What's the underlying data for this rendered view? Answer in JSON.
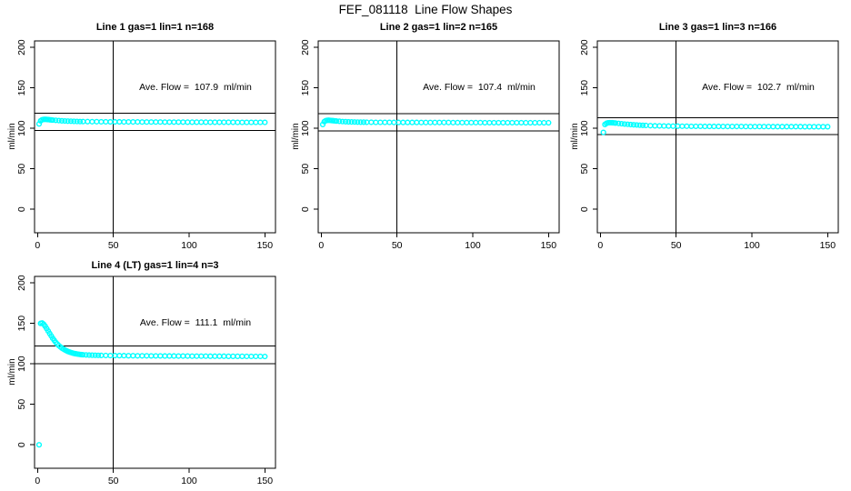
{
  "chart_data": {
    "type": "scatter",
    "suptitle": "FEF_081118  Line Flow Shapes",
    "xlabel": "",
    "ylabel": "ml/min",
    "x_ticks": [
      0,
      50,
      100,
      150
    ],
    "y_ticks": [
      0,
      50,
      100,
      150,
      200
    ],
    "xlim": [
      -2,
      157
    ],
    "ylim": [
      -29,
      208
    ],
    "grid": false,
    "legend": "none",
    "point_color": "#00FFFF",
    "axis_color": "#000000",
    "vline_x": 50,
    "annotation_pos": {
      "x": 103,
      "y": 150
    },
    "subplots": [
      {
        "title": "Line 1 gas=1 lin=1 n=168",
        "annotation": "Ave. Flow =  107.9  ml/min",
        "ave_flow": 107.9,
        "n": 168,
        "hlines": [
          118.7,
          97.1
        ],
        "points": [
          [
            1,
            105.5
          ],
          [
            2,
            109.3
          ],
          [
            3,
            110.6
          ],
          [
            4,
            111.0
          ],
          [
            5,
            111.1
          ],
          [
            6,
            111.0
          ],
          [
            7,
            110.8
          ],
          [
            8,
            110.6
          ],
          [
            9,
            110.4
          ],
          [
            10,
            110.2
          ],
          [
            12,
            109.9
          ],
          [
            14,
            109.6
          ],
          [
            16,
            109.3
          ],
          [
            18,
            109.1
          ],
          [
            20,
            108.9
          ],
          [
            22,
            108.8
          ],
          [
            24,
            108.6
          ],
          [
            26,
            108.5
          ],
          [
            28,
            108.4
          ],
          [
            30,
            108.4
          ],
          [
            33,
            108.3
          ],
          [
            36,
            108.2
          ],
          [
            39,
            108.2
          ],
          [
            42,
            108.1
          ],
          [
            45,
            108.1
          ],
          [
            48,
            108.0
          ],
          [
            51,
            108.0
          ],
          [
            54,
            108.0
          ],
          [
            57,
            107.9
          ],
          [
            60,
            107.9
          ],
          [
            63,
            107.9
          ],
          [
            66,
            107.9
          ],
          [
            69,
            107.8
          ],
          [
            72,
            107.8
          ],
          [
            75,
            107.8
          ],
          [
            78,
            107.8
          ],
          [
            81,
            107.8
          ],
          [
            84,
            107.7
          ],
          [
            87,
            107.7
          ],
          [
            90,
            107.7
          ],
          [
            93,
            107.7
          ],
          [
            96,
            107.7
          ],
          [
            99,
            107.6
          ],
          [
            102,
            107.6
          ],
          [
            105,
            107.6
          ],
          [
            108,
            107.6
          ],
          [
            111,
            107.6
          ],
          [
            114,
            107.5
          ],
          [
            117,
            107.5
          ],
          [
            120,
            107.5
          ],
          [
            123,
            107.5
          ],
          [
            126,
            107.5
          ],
          [
            129,
            107.5
          ],
          [
            132,
            107.4
          ],
          [
            135,
            107.4
          ],
          [
            138,
            107.4
          ],
          [
            141,
            107.4
          ],
          [
            144,
            107.4
          ],
          [
            147,
            107.4
          ],
          [
            150,
            107.4
          ]
        ]
      },
      {
        "title": "Line 2 gas=1 lin=2 n=165",
        "annotation": "Ave. Flow =  107.4  ml/min",
        "ave_flow": 107.4,
        "n": 165,
        "hlines": [
          118.1,
          96.7
        ],
        "points": [
          [
            1,
            104.8
          ],
          [
            2,
            108.3
          ],
          [
            3,
            109.5
          ],
          [
            4,
            109.9
          ],
          [
            5,
            110.0
          ],
          [
            6,
            109.8
          ],
          [
            7,
            109.6
          ],
          [
            8,
            109.4
          ],
          [
            9,
            109.2
          ],
          [
            10,
            109.0
          ],
          [
            12,
            108.7
          ],
          [
            14,
            108.4
          ],
          [
            16,
            108.2
          ],
          [
            18,
            108.0
          ],
          [
            20,
            107.9
          ],
          [
            22,
            107.8
          ],
          [
            24,
            107.7
          ],
          [
            26,
            107.6
          ],
          [
            28,
            107.6
          ],
          [
            30,
            107.5
          ],
          [
            33,
            107.5
          ],
          [
            36,
            107.4
          ],
          [
            39,
            107.4
          ],
          [
            42,
            107.4
          ],
          [
            45,
            107.4
          ],
          [
            48,
            107.3
          ],
          [
            51,
            107.3
          ],
          [
            54,
            107.3
          ],
          [
            57,
            107.3
          ],
          [
            60,
            107.3
          ],
          [
            63,
            107.3
          ],
          [
            66,
            107.2
          ],
          [
            69,
            107.2
          ],
          [
            72,
            107.2
          ],
          [
            75,
            107.2
          ],
          [
            78,
            107.2
          ],
          [
            81,
            107.2
          ],
          [
            84,
            107.2
          ],
          [
            87,
            107.1
          ],
          [
            90,
            107.1
          ],
          [
            93,
            107.1
          ],
          [
            96,
            107.1
          ],
          [
            99,
            107.1
          ],
          [
            102,
            107.1
          ],
          [
            105,
            107.1
          ],
          [
            108,
            107.0
          ],
          [
            111,
            107.0
          ],
          [
            114,
            107.0
          ],
          [
            117,
            107.0
          ],
          [
            120,
            107.0
          ],
          [
            123,
            107.0
          ],
          [
            126,
            107.0
          ],
          [
            129,
            107.0
          ],
          [
            132,
            107.0
          ],
          [
            135,
            106.9
          ],
          [
            138,
            106.9
          ],
          [
            141,
            106.9
          ],
          [
            144,
            106.9
          ],
          [
            147,
            106.9
          ],
          [
            150,
            106.9
          ]
        ]
      },
      {
        "title": "Line 3 gas=1 lin=3 n=166",
        "annotation": "Ave. Flow =  102.7  ml/min",
        "ave_flow": 102.7,
        "n": 166,
        "hlines": [
          113.0,
          92.4
        ],
        "points": [
          [
            2,
            95.0
          ],
          [
            3,
            104.8
          ],
          [
            4,
            106.2
          ],
          [
            5,
            106.8
          ],
          [
            6,
            107.0
          ],
          [
            7,
            107.0
          ],
          [
            8,
            106.9
          ],
          [
            9,
            106.7
          ],
          [
            10,
            106.5
          ],
          [
            12,
            106.1
          ],
          [
            14,
            105.7
          ],
          [
            16,
            105.3
          ],
          [
            18,
            105.0
          ],
          [
            20,
            104.7
          ],
          [
            22,
            104.4
          ],
          [
            24,
            104.2
          ],
          [
            26,
            103.9
          ],
          [
            28,
            103.7
          ],
          [
            30,
            103.6
          ],
          [
            33,
            103.3
          ],
          [
            36,
            103.1
          ],
          [
            39,
            103.0
          ],
          [
            42,
            102.9
          ],
          [
            45,
            102.8
          ],
          [
            48,
            102.7
          ],
          [
            51,
            102.7
          ],
          [
            54,
            102.6
          ],
          [
            57,
            102.6
          ],
          [
            60,
            102.5
          ],
          [
            63,
            102.5
          ],
          [
            66,
            102.5
          ],
          [
            69,
            102.4
          ],
          [
            72,
            102.4
          ],
          [
            75,
            102.4
          ],
          [
            78,
            102.4
          ],
          [
            81,
            102.3
          ],
          [
            84,
            102.3
          ],
          [
            87,
            102.3
          ],
          [
            90,
            102.3
          ],
          [
            93,
            102.3
          ],
          [
            96,
            102.2
          ],
          [
            99,
            102.2
          ],
          [
            102,
            102.2
          ],
          [
            105,
            102.2
          ],
          [
            108,
            102.2
          ],
          [
            111,
            102.2
          ],
          [
            114,
            102.1
          ],
          [
            117,
            102.1
          ],
          [
            120,
            102.1
          ],
          [
            123,
            102.1
          ],
          [
            126,
            102.1
          ],
          [
            129,
            102.1
          ],
          [
            132,
            102.1
          ],
          [
            135,
            102.0
          ],
          [
            138,
            102.0
          ],
          [
            141,
            102.0
          ],
          [
            144,
            102.0
          ],
          [
            147,
            102.0
          ],
          [
            150,
            102.0
          ]
        ]
      },
      {
        "title": "Line 4 (LT) gas=1 lin=4 n=3",
        "annotation": "Ave. Flow =  111.1  ml/min",
        "ave_flow": 111.1,
        "n": 3,
        "hlines": [
          122.2,
          100.0
        ],
        "points": [
          [
            1,
            0
          ],
          [
            2,
            150.0
          ],
          [
            3,
            150.5
          ],
          [
            4,
            149.0
          ],
          [
            5,
            146.5
          ],
          [
            6,
            143.5
          ],
          [
            7,
            140.5
          ],
          [
            8,
            137.5
          ],
          [
            9,
            134.5
          ],
          [
            10,
            131.5
          ],
          [
            11,
            129.0
          ],
          [
            12,
            126.5
          ],
          [
            13,
            124.5
          ],
          [
            14,
            122.5
          ],
          [
            15,
            121.0
          ],
          [
            16,
            119.5
          ],
          [
            17,
            118.3
          ],
          [
            18,
            117.2
          ],
          [
            19,
            116.2
          ],
          [
            20,
            115.3
          ],
          [
            21,
            114.6
          ],
          [
            22,
            114.0
          ],
          [
            23,
            113.4
          ],
          [
            24,
            112.9
          ],
          [
            25,
            112.5
          ],
          [
            26,
            112.2
          ],
          [
            27,
            111.9
          ],
          [
            28,
            111.6
          ],
          [
            29,
            111.4
          ],
          [
            30,
            111.2
          ],
          [
            32,
            111.0
          ],
          [
            34,
            110.8
          ],
          [
            36,
            110.7
          ],
          [
            38,
            110.6
          ],
          [
            40,
            110.5
          ],
          [
            42,
            110.4
          ],
          [
            45,
            110.3
          ],
          [
            48,
            110.2
          ],
          [
            51,
            110.2
          ],
          [
            54,
            110.1
          ],
          [
            57,
            110.1
          ],
          [
            60,
            110.0
          ],
          [
            63,
            110.0
          ],
          [
            66,
            109.9
          ],
          [
            69,
            109.9
          ],
          [
            72,
            109.9
          ],
          [
            75,
            109.8
          ],
          [
            78,
            109.8
          ],
          [
            81,
            109.8
          ],
          [
            84,
            109.7
          ],
          [
            87,
            109.7
          ],
          [
            90,
            109.7
          ],
          [
            93,
            109.6
          ],
          [
            96,
            109.6
          ],
          [
            99,
            109.6
          ],
          [
            102,
            109.5
          ],
          [
            105,
            109.5
          ],
          [
            108,
            109.5
          ],
          [
            111,
            109.5
          ],
          [
            114,
            109.4
          ],
          [
            117,
            109.4
          ],
          [
            120,
            109.4
          ],
          [
            123,
            109.4
          ],
          [
            126,
            109.3
          ],
          [
            129,
            109.3
          ],
          [
            132,
            109.3
          ],
          [
            135,
            109.3
          ],
          [
            138,
            109.2
          ],
          [
            141,
            109.2
          ],
          [
            144,
            109.2
          ],
          [
            147,
            109.2
          ],
          [
            150,
            109.1
          ]
        ]
      }
    ]
  }
}
